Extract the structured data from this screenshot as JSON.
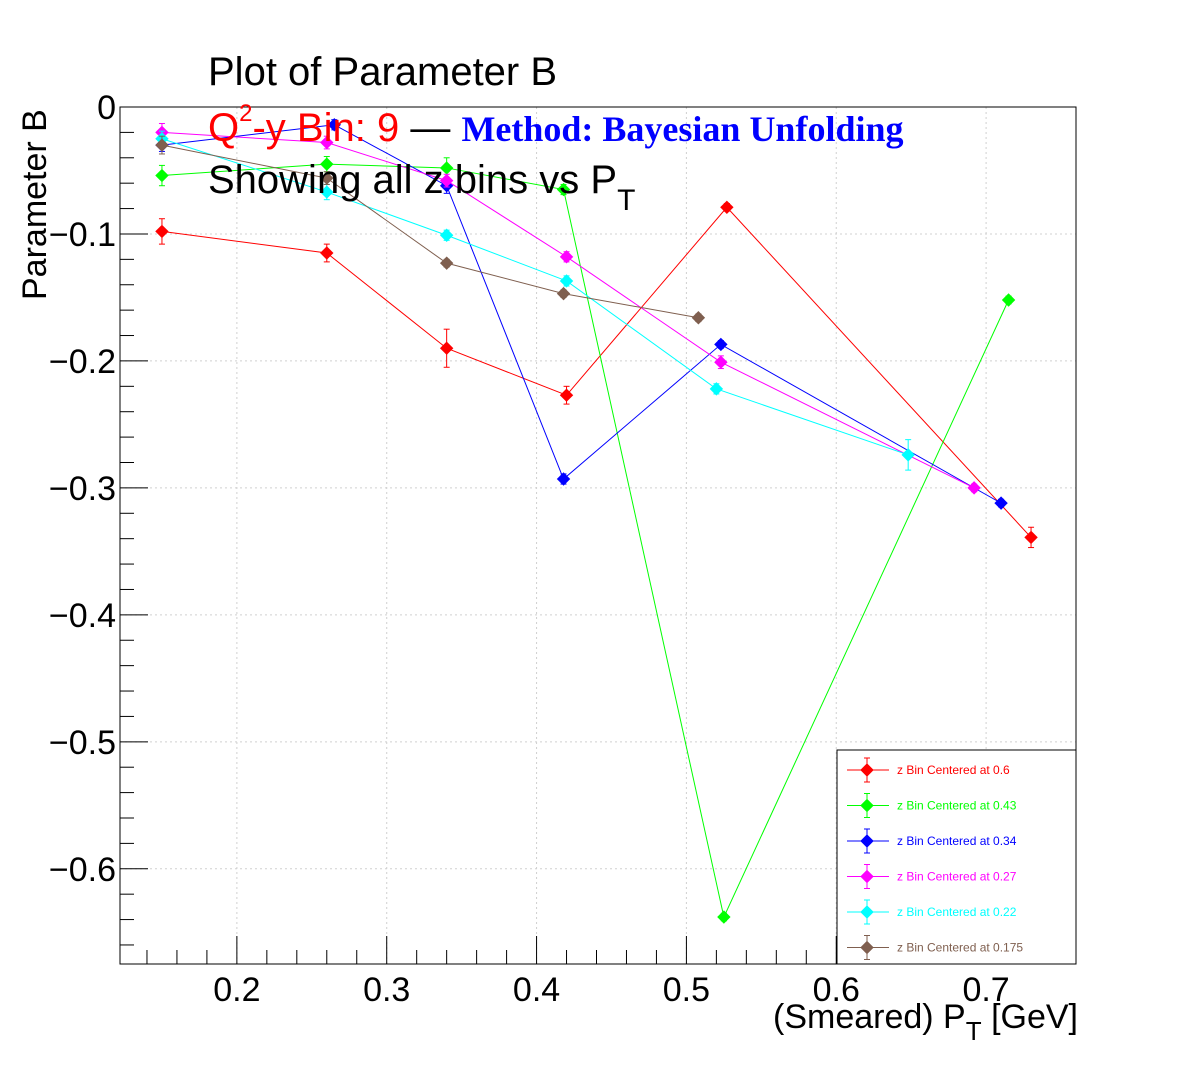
{
  "title": {
    "main": "Plot of Parameter B",
    "bin_prefix": "Q",
    "bin_sup": "2",
    "bin_suffix": "-y Bin: 9",
    "dash": " — ",
    "method": "Method: Bayesian Unfolding",
    "subtitle_text": "Showing all z bins vs P",
    "subtitle_sub": "T"
  },
  "axes": {
    "x_title_prefix": "(Smeared) P",
    "x_title_sub": "T",
    "x_title_suffix": " [GeV]",
    "y_title": "Parameter B"
  },
  "chart_data": {
    "type": "scatter",
    "xlim": [
      0.122,
      0.76
    ],
    "ylim": [
      -0.675,
      0
    ],
    "x_ticks": [
      0.2,
      0.3,
      0.4,
      0.5,
      0.6,
      0.7
    ],
    "x_tick_labels": [
      "0.2",
      "0.3",
      "0.4",
      "0.5",
      "0.6",
      "0.7"
    ],
    "y_ticks": [
      0,
      -0.1,
      -0.2,
      -0.3,
      -0.4,
      -0.5,
      -0.6
    ],
    "y_tick_labels": [
      "0",
      "−0.1",
      "−0.2",
      "−0.3",
      "−0.4",
      "−0.5",
      "−0.6"
    ],
    "grid": true,
    "legend_position": "bottom-right",
    "series": [
      {
        "name": "z Bin Centered at 0.6",
        "color": "#ff0000",
        "x": [
          0.15,
          0.26,
          0.34,
          0.42,
          0.527,
          0.73
        ],
        "y": [
          -0.098,
          -0.115,
          -0.19,
          -0.227,
          -0.079,
          -0.339
        ],
        "err": [
          0.01,
          0.007,
          0.015,
          0.007,
          0.003,
          0.008
        ]
      },
      {
        "name": "z Bin Centered at 0.43",
        "color": "#00ff00",
        "x": [
          0.15,
          0.26,
          0.34,
          0.418,
          0.525,
          0.715
        ],
        "y": [
          -0.054,
          -0.045,
          -0.048,
          -0.065,
          -0.638,
          -0.152
        ],
        "err": [
          0.008,
          0.006,
          0.008,
          0.004,
          0.003,
          0.003
        ]
      },
      {
        "name": "z Bin Centered at 0.34",
        "color": "#0000ff",
        "x": [
          0.15,
          0.265,
          0.34,
          0.418,
          0.523,
          0.71
        ],
        "y": [
          -0.03,
          -0.014,
          -0.062,
          -0.293,
          -0.187,
          -0.312
        ],
        "err": [
          0.005,
          0.004,
          0.006,
          0.004,
          0.003,
          0.003
        ]
      },
      {
        "name": "z Bin Centered at 0.27",
        "color": "#ff00ff",
        "x": [
          0.15,
          0.26,
          0.34,
          0.42,
          0.523,
          0.692
        ],
        "y": [
          -0.02,
          -0.028,
          -0.058,
          -0.118,
          -0.201,
          -0.3
        ],
        "err": [
          0.007,
          0.005,
          0.005,
          0.004,
          0.005,
          0.003
        ]
      },
      {
        "name": "z Bin Centered at 0.22",
        "color": "#00ffff",
        "x": [
          0.15,
          0.26,
          0.34,
          0.42,
          0.52,
          0.648
        ],
        "y": [
          -0.025,
          -0.067,
          -0.101,
          -0.137,
          -0.222,
          -0.274
        ],
        "err": [
          0.006,
          0.006,
          0.004,
          0.004,
          0.004,
          0.012
        ]
      },
      {
        "name": "z Bin Centered at 0.175",
        "color": "#7f5f4f",
        "x": [
          0.15,
          0.26,
          0.34,
          0.418,
          0.508
        ],
        "y": [
          -0.03,
          -0.056,
          -0.123,
          -0.147,
          -0.166
        ],
        "err": [
          0.007,
          0.005,
          0.003,
          0.003,
          0.003
        ]
      }
    ]
  }
}
